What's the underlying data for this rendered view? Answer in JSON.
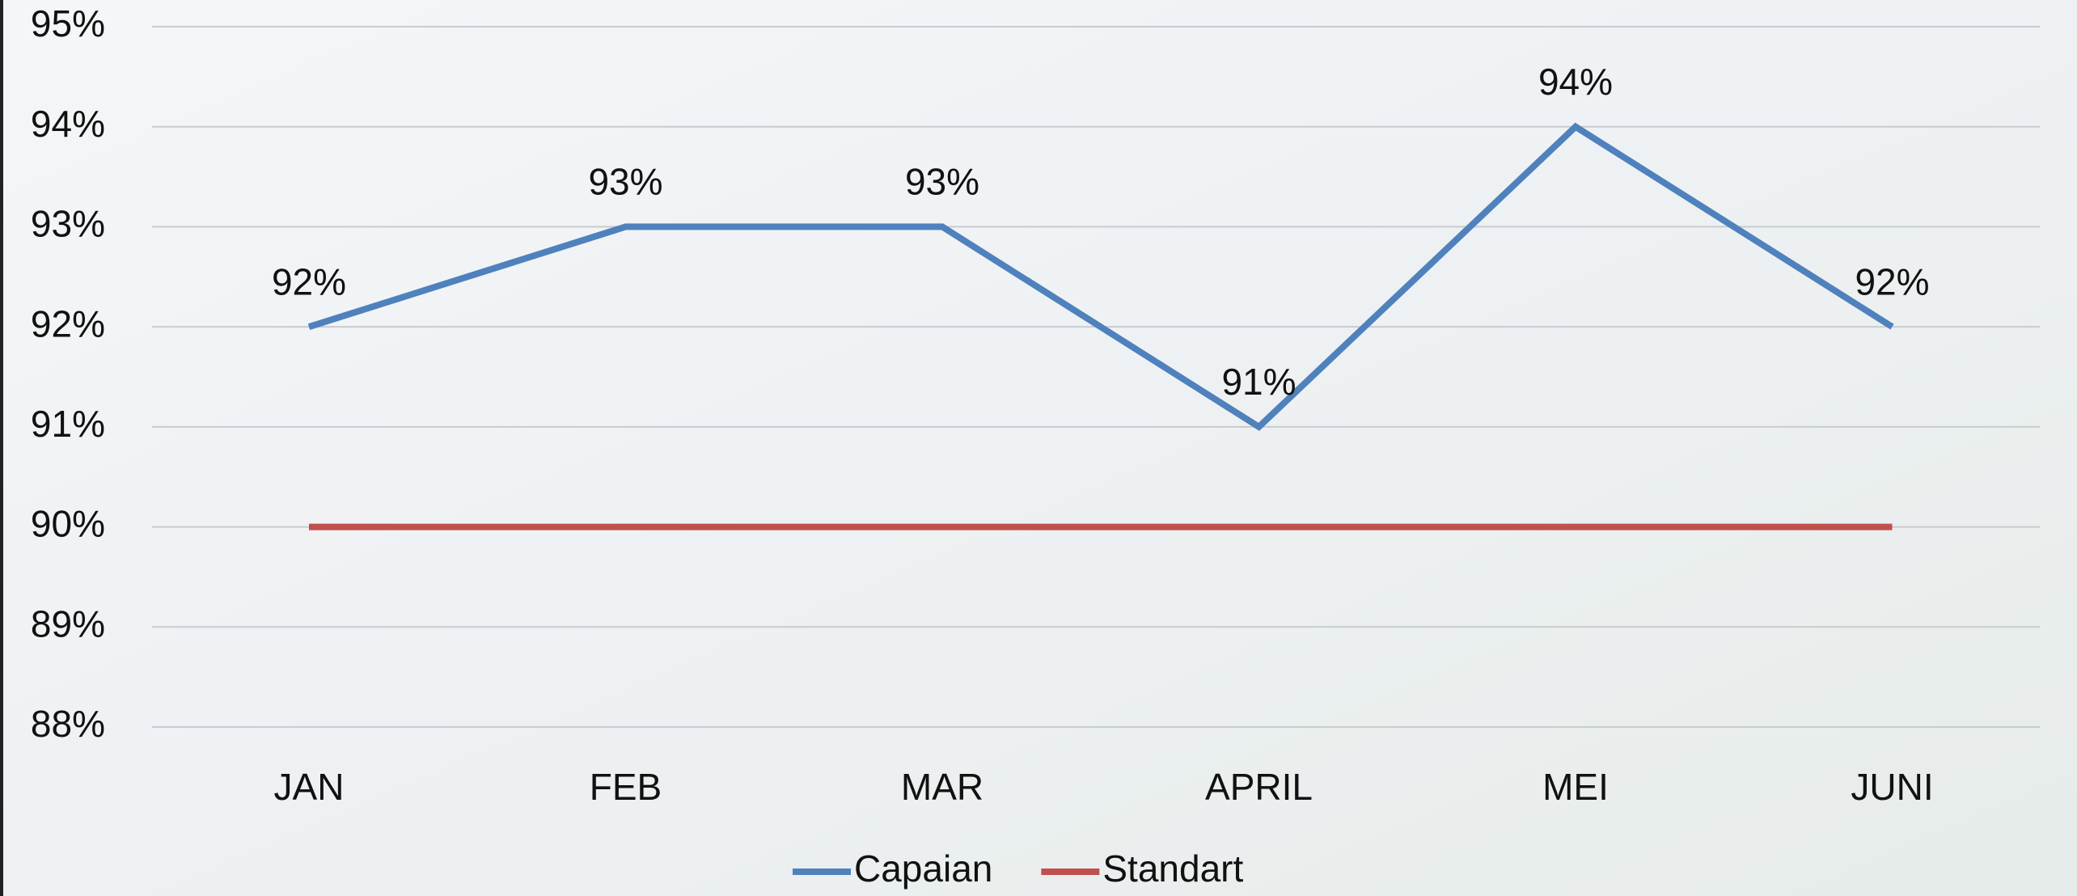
{
  "chart_data": {
    "type": "line",
    "categories": [
      "JAN",
      "FEB",
      "MAR",
      "APRIL",
      "MEI",
      "JUNI"
    ],
    "series": [
      {
        "name": "Capaian",
        "color": "#4f81bd",
        "values": [
          92,
          93,
          93,
          91,
          94,
          92
        ],
        "value_labels": [
          "92%",
          "93%",
          "93%",
          "91%",
          "94%",
          "92%"
        ]
      },
      {
        "name": "Standart",
        "color": "#c0504d",
        "values": [
          90,
          90,
          90,
          90,
          90,
          90
        ]
      }
    ],
    "ylim": [
      88,
      95
    ],
    "yticks": [
      {
        "value": 88,
        "label": "88%"
      },
      {
        "value": 89,
        "label": "89%"
      },
      {
        "value": 90,
        "label": "90%"
      },
      {
        "value": 91,
        "label": "91%"
      },
      {
        "value": 92,
        "label": "92%"
      },
      {
        "value": 93,
        "label": "93%"
      },
      {
        "value": 94,
        "label": "94%"
      },
      {
        "value": 95,
        "label": "95%"
      }
    ],
    "grid": true,
    "legend": "bottom"
  }
}
